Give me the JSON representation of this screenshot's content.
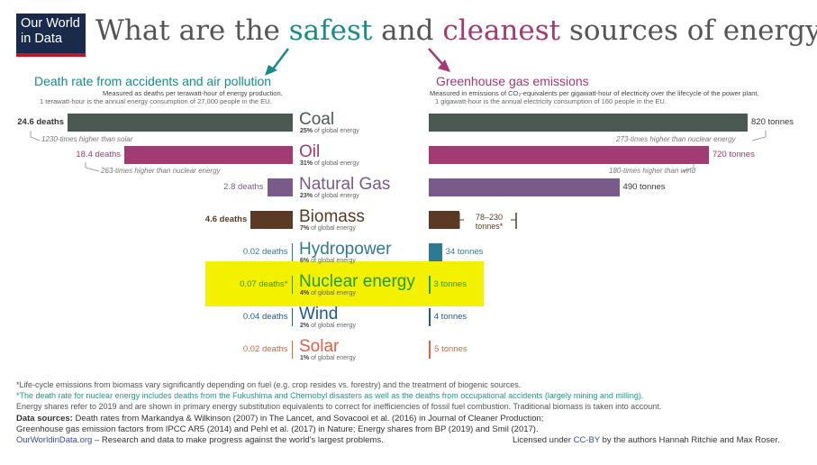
{
  "logo": {
    "line1": "Our World",
    "line2": "in Data"
  },
  "title": {
    "pre": "What are the ",
    "safest": "safest",
    "mid": " and ",
    "cleanest": "cleanest",
    "post": " sources of energy?"
  },
  "left_panel": {
    "title": "Death rate from accidents and air pollution",
    "sub1": "Measured as deaths per terawatt-hour of energy production.",
    "sub2": "1 terawatt-hour is the annual energy consumption of 27,000 people in the EU."
  },
  "right_panel": {
    "title": "Greenhouse gas emissions",
    "sub1": "Measured in emissions of CO₂-equivalents per gigawatt-hour of electricity over the lifecycle of the power plant.",
    "sub2": "1 gigawatt-hour is the annual electricity consumption of 160 people in the EU."
  },
  "chart_data": {
    "type": "bar",
    "categories": [
      "Coal",
      "Oil",
      "Natural Gas",
      "Biomass",
      "Hydropower",
      "Nuclear energy",
      "Wind",
      "Solar"
    ],
    "series": [
      {
        "name": "Death rate from accidents and air pollution",
        "values": [
          24.6,
          18.4,
          2.8,
          4.6,
          0.02,
          0.07,
          0.04,
          0.02
        ],
        "labels": [
          "24.6 deaths",
          "18.4 deaths",
          "2.8 deaths",
          "4.6 deaths",
          "0.02 deaths",
          "0.07 deaths*",
          "0.04 deaths",
          "0.02 deaths"
        ]
      },
      {
        "name": "Greenhouse gas emissions",
        "values": [
          820,
          720,
          490,
          230,
          34,
          3,
          4,
          5
        ],
        "labels": [
          "820 tonnes",
          "720 tonnes",
          "490 tonnes",
          "",
          "34 tonnes",
          "3 tonnes",
          "4 tonnes",
          "5 tonnes"
        ]
      }
    ],
    "shares": [
      "25%",
      "31%",
      "23%",
      "7%",
      "6%",
      "4%",
      "2%",
      "1%"
    ],
    "share_suffix": "of global energy",
    "colors": [
      "#4a5a52",
      "#a23a73",
      "#7a5a8a",
      "#5a3a24",
      "#2e7a94",
      "#2a9a2a",
      "#1f5a8a",
      "#e0604a"
    ],
    "biomass_range": {
      "top": "78–230",
      "bottom": "tonnes*"
    },
    "annotations": {
      "coal_deaths": "1230-times higher than solar",
      "oil_deaths": "263-times higher than nuclear energy",
      "coal_emissions": "273-times higher than nuclear energy",
      "oil_emissions": "180-times higher than wind"
    }
  },
  "footnotes": {
    "f1": "*Life-cycle emissions from biomass vary significantly depending on fuel (e.g. crop resides vs. forestry) and the treatment of biogenic sources.",
    "f2": "*The death rate for nuclear energy includes deaths from the Fukushima and Chernobyl disasters as well as the deaths from occupational accidents (largely mining and milling).",
    "f3": "Energy shares refer to 2019 and are shown in primary energy substitution equivalents to correct for inefficiencies of fossil fuel combustion. Traditional biomass is taken into account.",
    "ds_label": "Data sources:",
    "ds1": " Death rates from Markandya & Wilkinson (2007) in The Lancet, and Sovacool et al. (2016) in Journal of Cleaner Production;",
    "ds2": "Greenhouse gas emission factors from IPCC AR5 (2014) and Pehl et al. (2017) in Nature; Energy shares from BP (2019) and Smil (2017).",
    "site": "OurWorldinData.org",
    "tagline": " – Research and data to make progress against the world's largest problems.",
    "license_pre": "Licensed under ",
    "license_link": "CC-BY",
    "license_post": " by the authors Hannah Ritchie and Max Roser."
  }
}
